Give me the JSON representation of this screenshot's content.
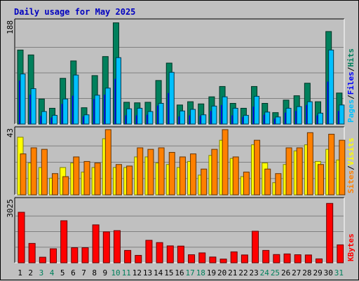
{
  "chart_data": {
    "type": "bar",
    "title": "Daily usage for May 2025",
    "days": [
      "1",
      "2",
      "3",
      "4",
      "5",
      "6",
      "7",
      "8",
      "9",
      "10",
      "11",
      "12",
      "13",
      "14",
      "15",
      "16",
      "17",
      "18",
      "19",
      "20",
      "21",
      "22",
      "23",
      "24",
      "25",
      "26",
      "27",
      "28",
      "29",
      "30",
      "31"
    ],
    "weekend_days": [
      "3",
      "4",
      "10",
      "11",
      "17",
      "18",
      "24",
      "25",
      "31"
    ],
    "panels": [
      {
        "id": "hits",
        "y_max_label": "188",
        "ylim": [
          0,
          188
        ],
        "legend": [
          "Hits",
          "/",
          "Files",
          "/",
          "Pages"
        ],
        "legend_colors": [
          "#00805c",
          "#000000",
          "#0000ff",
          "#000000",
          "#00c0ff"
        ],
        "series": [
          {
            "name": "Hits",
            "color": "#00805c",
            "values": [
              136,
              127,
              46,
              29,
              84,
              116,
              30,
              89,
              124,
              186,
              40,
              39,
              40,
              80,
              112,
              35,
              41,
              37,
              50,
              69,
              38,
              29,
              69,
              38,
              21,
              44,
              52,
              75,
              41,
              170,
              57
            ]
          },
          {
            "name": "Files",
            "color": "#0000ff",
            "values": [
              80,
              54,
              15,
              12,
              37,
              52,
              14,
              46,
              54,
              83,
              16,
              16,
              17,
              34,
              57,
              14,
              16,
              15,
              24,
              35,
              16,
              13,
              32,
              17,
              10,
              21,
              24,
              35,
              16,
              78,
              24
            ]
          },
          {
            "name": "Pages",
            "color": "#00c0ff",
            "values": [
              92,
              65,
              23,
              16,
              46,
              90,
              17,
              53,
              66,
              122,
              28,
              29,
              23,
              38,
              95,
              24,
              27,
              17,
              33,
              50,
              29,
              16,
              51,
              22,
              13,
              29,
              32,
              41,
              20,
              136,
              35
            ]
          }
        ]
      },
      {
        "id": "visits",
        "y_max_label": "43",
        "ylim": [
          0,
          43
        ],
        "legend": [
          "Visits",
          "/",
          "Sites"
        ],
        "legend_colors": [
          "#ffff00",
          "#000000",
          "#ff8000"
        ],
        "series": [
          {
            "name": "Visits",
            "color": "#ffff00",
            "values": [
              38,
              21,
              18,
              11,
              18,
              21,
              15,
              18,
              37,
              18,
              18,
              25,
              25,
              21,
              20,
              18,
              22,
              13,
              26,
              36,
              24,
              12,
              33,
              21,
              8,
              20,
              29,
              33,
              22,
              30,
              23
            ]
          },
          {
            "name": "Sites",
            "color": "#ff8000",
            "values": [
              27,
              31,
              30,
              14,
              12,
              25,
              22,
              21,
              43,
              20,
              19,
              31,
              30,
              31,
              28,
              25,
              27,
              17,
              30,
              43,
              25,
              15,
              36,
              17,
              14,
              31,
              31,
              41,
              20,
              40,
              36
            ]
          }
        ]
      },
      {
        "id": "kbytes",
        "y_max_label": "3025",
        "ylim": [
          0,
          3025
        ],
        "legend": [
          "KBytes"
        ],
        "legend_colors": [
          "#ff0000"
        ],
        "series": [
          {
            "name": "KBytes",
            "color": "#ff0000",
            "values": [
              2450,
              940,
              270,
              680,
              2040,
              730,
              730,
              1840,
              1500,
              1560,
              600,
              360,
              1090,
              980,
              820,
              810,
              390,
              480,
              280,
              180,
              530,
              380,
              1530,
              600,
              400,
              430,
              390,
              380,
              190,
              2880,
              870
            ]
          }
        ]
      }
    ]
  }
}
